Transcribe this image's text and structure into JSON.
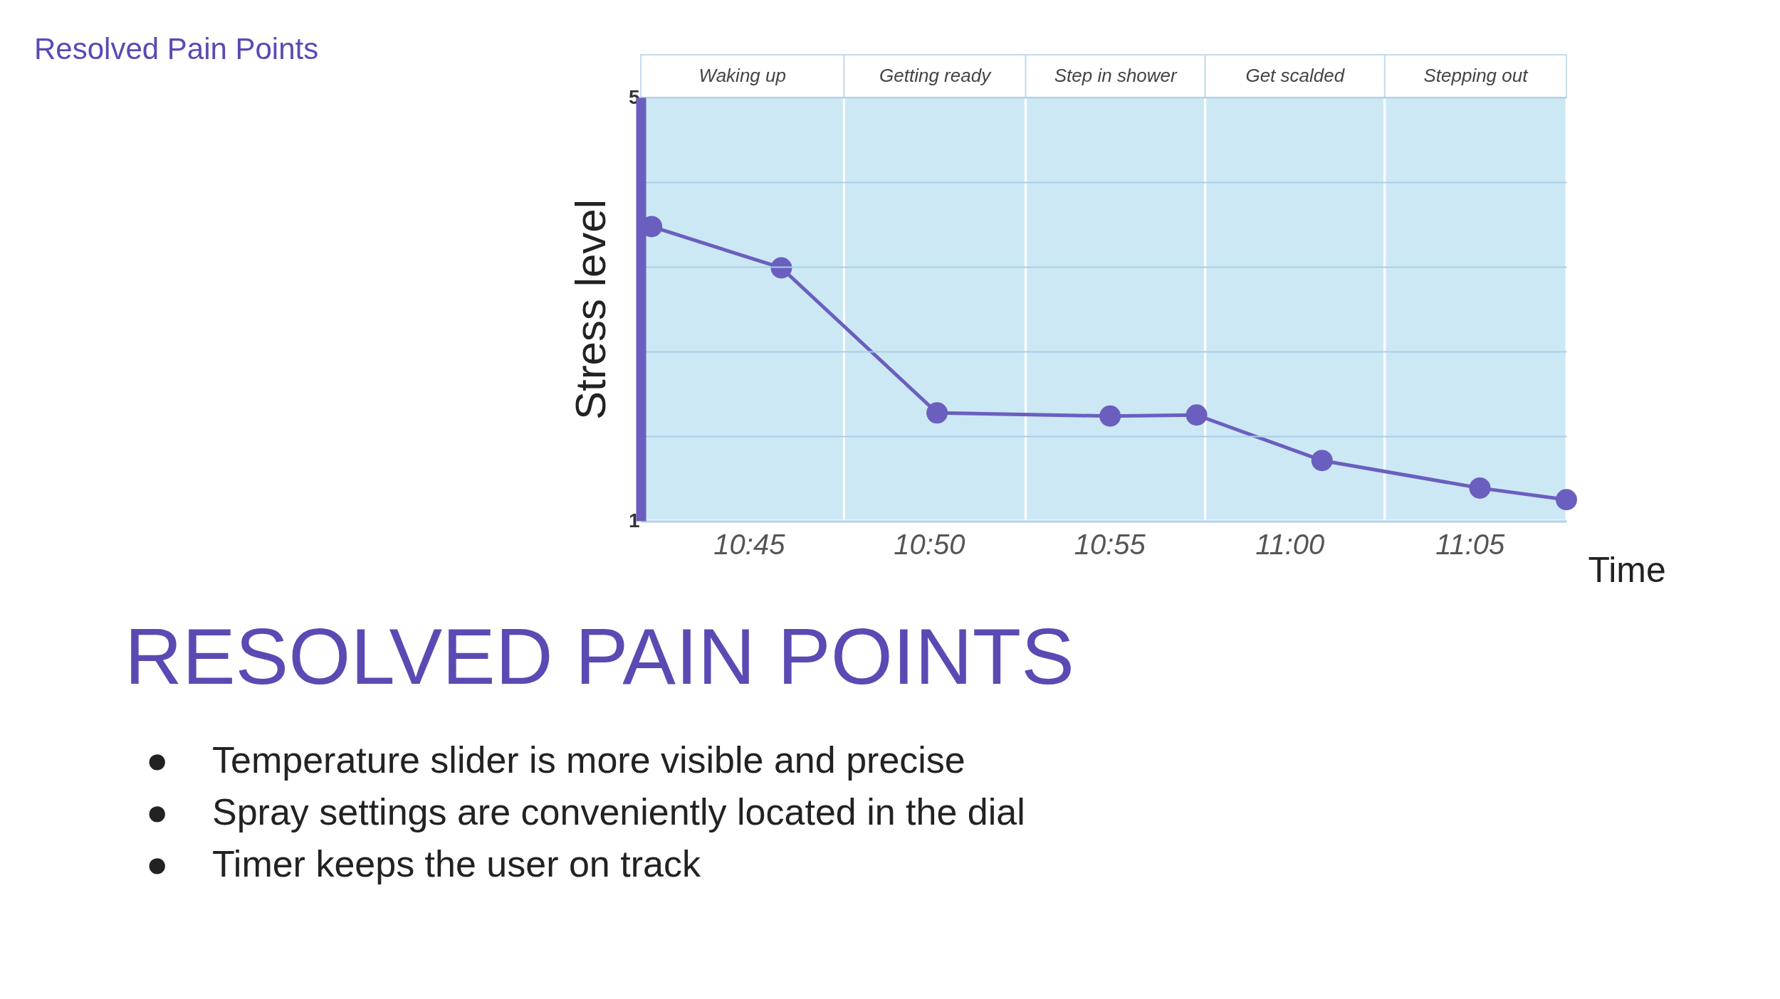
{
  "chart_data": {
    "type": "line",
    "title": "Resolved Pain Points",
    "xlabel": "Time",
    "ylabel": "Stress level",
    "x": [
      10.705,
      10.765,
      10.837,
      10.917,
      10.957,
      11.015,
      11.088,
      11.128
    ],
    "series": [
      {
        "color": "#6a5fbf",
        "values": [
          3.78,
          3.39,
          2.02,
          1.99,
          2.0,
          1.57,
          1.31,
          1.2
        ]
      }
    ],
    "xlim": [
      10.7,
      11.128
    ],
    "xticks": [
      {
        "value": 10.75,
        "label": "10:45"
      },
      {
        "value": 10.8333,
        "label": "10:50"
      },
      {
        "value": 10.9167,
        "label": "10:55"
      },
      {
        "value": 11.0,
        "label": "11:00"
      },
      {
        "value": 11.0833,
        "label": "11:05"
      }
    ],
    "ylim": [
      1,
      5
    ],
    "yticks": [
      1,
      {
        "value": 1.8,
        "label": null
      },
      {
        "value": 2.6,
        "label": null
      },
      {
        "value": 3.4,
        "label": null
      },
      {
        "value": 4.2,
        "label": null
      },
      5
    ],
    "bands": [
      {
        "axis": "x",
        "from": 10.7,
        "to": 10.794,
        "label": "Waking up",
        "color": "#cde8f5"
      },
      {
        "axis": "x",
        "from": 10.794,
        "to": 10.878,
        "label": "Getting ready",
        "color": "#cde8f5"
      },
      {
        "axis": "x",
        "from": 10.878,
        "to": 10.961,
        "label": "Step in shower",
        "color": "#cde8f5"
      },
      {
        "axis": "x",
        "from": 10.961,
        "to": 11.044,
        "label": "Get scalded",
        "color": "#cde8f5"
      },
      {
        "axis": "x",
        "from": 11.044,
        "to": 11.128,
        "label": "Stepping out",
        "color": "#cde8f5"
      }
    ],
    "annotations": [
      "RESOLVED PAIN POINTS",
      "●",
      "Temperature slider is more visible and precise",
      "●",
      "Spray settings are conveniently located in the dial",
      "●",
      "Timer keeps the user on track"
    ],
    "grid": "y",
    "marker": "circle",
    "line_style": "solid"
  }
}
